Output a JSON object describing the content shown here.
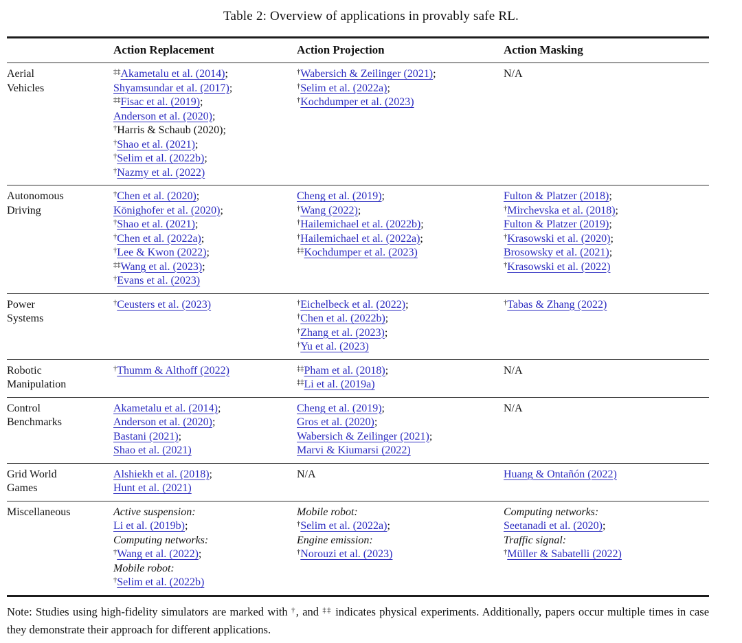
{
  "title": "Table 2: Overview of applications in provably safe RL.",
  "columns": [
    "Action Replacement",
    "Action Projection",
    "Action Masking"
  ],
  "colors": {
    "link_color": "#2b2bc0",
    "text_color": "#121212",
    "rule_heavy": "#1c1c1c",
    "rule_light": "#2e2e2e"
  },
  "rows": [
    {
      "label": "Aerial\nVehicles",
      "cells": [
        [
          {
            "marker": "‡‡",
            "text": "Akametalu et al. (2014)",
            "link": true,
            "end": ";"
          },
          {
            "text": "Shyamsundar et al. (2017)",
            "link": true,
            "end": ";"
          },
          {
            "marker": "‡‡",
            "text": "Fisac et al. (2019)",
            "link": true,
            "end": ";"
          },
          {
            "text": "Anderson et al. (2020)",
            "link": true,
            "end": ";"
          },
          {
            "marker": "†",
            "text": "Harris & Schaub (2020)",
            "link": false,
            "end": ";"
          },
          {
            "marker": "†",
            "text": "Shao et al. (2021)",
            "link": true,
            "end": ";"
          },
          {
            "marker": "†",
            "text": "Selim et al. (2022b)",
            "link": true,
            "end": ";"
          },
          {
            "marker": "†",
            "text": "Nazmy et al. (2022)",
            "link": true,
            "end": ""
          }
        ],
        [
          {
            "marker": "†",
            "text": "Wabersich & Zeilinger (2021)",
            "link": true,
            "end": ";"
          },
          {
            "marker": "†",
            "text": "Selim et al. (2022a)",
            "link": true,
            "end": ";"
          },
          {
            "marker": "†",
            "text": "Kochdumper et al. (2023)",
            "link": true,
            "end": ""
          }
        ],
        [
          {
            "text": "N/A",
            "link": false,
            "na": true,
            "end": ""
          }
        ]
      ]
    },
    {
      "label": "Autonomous\nDriving",
      "cells": [
        [
          {
            "marker": "†",
            "text": "Chen et al. (2020)",
            "link": true,
            "end": ";"
          },
          {
            "text": "Könighofer et al. (2020)",
            "link": true,
            "end": ";"
          },
          {
            "marker": "†",
            "text": "Shao et al. (2021)",
            "link": true,
            "end": ";"
          },
          {
            "marker": "†",
            "text": "Chen et al. (2022a)",
            "link": true,
            "end": ";"
          },
          {
            "marker": "†",
            "text": "Lee & Kwon (2022)",
            "link": true,
            "end": ";"
          },
          {
            "marker": "‡‡",
            "text": "Wang et al. (2023)",
            "link": true,
            "end": ";"
          },
          {
            "marker": "†",
            "text": "Evans et al. (2023)",
            "link": true,
            "end": ""
          }
        ],
        [
          {
            "text": "Cheng et al. (2019)",
            "link": true,
            "end": ";"
          },
          {
            "marker": "†",
            "text": "Wang (2022)",
            "link": true,
            "end": ";"
          },
          {
            "marker": "†",
            "text": "Hailemichael et al. (2022b)",
            "link": true,
            "end": ";"
          },
          {
            "marker": "†",
            "text": "Hailemichael et al. (2022a)",
            "link": true,
            "end": ";"
          },
          {
            "marker": "‡‡",
            "text": "Kochdumper et al. (2023)",
            "link": true,
            "end": ""
          }
        ],
        [
          {
            "text": "Fulton & Platzer (2018)",
            "link": true,
            "end": ";"
          },
          {
            "marker": "†",
            "text": "Mirchevska et al. (2018)",
            "link": true,
            "end": ";"
          },
          {
            "text": "Fulton & Platzer (2019)",
            "link": true,
            "end": ";"
          },
          {
            "marker": "†",
            "text": "Krasowski et al. (2020)",
            "link": true,
            "end": ";"
          },
          {
            "text": "Brosowsky et al. (2021)",
            "link": true,
            "end": ";"
          },
          {
            "marker": "†",
            "text": "Krasowski et al. (2022)",
            "link": true,
            "end": ""
          }
        ]
      ]
    },
    {
      "label": "Power\nSystems",
      "cells": [
        [
          {
            "marker": "†",
            "text": "Ceusters et al. (2023)",
            "link": true,
            "end": ""
          }
        ],
        [
          {
            "marker": "†",
            "text": "Eichelbeck et al. (2022)",
            "link": true,
            "end": ";"
          },
          {
            "marker": "†",
            "text": "Chen et al. (2022b)",
            "link": true,
            "end": ";"
          },
          {
            "marker": "†",
            "text": "Zhang et al. (2023)",
            "link": true,
            "end": ";"
          },
          {
            "marker": "†",
            "text": "Yu et al. (2023)",
            "link": true,
            "end": ""
          }
        ],
        [
          {
            "marker": "†",
            "text": "Tabas & Zhang (2022)",
            "link": true,
            "end": ""
          }
        ]
      ]
    },
    {
      "label": "Robotic\nManipulation",
      "cells": [
        [
          {
            "marker": "†",
            "text": "Thumm & Althoff (2022)",
            "link": true,
            "end": ""
          }
        ],
        [
          {
            "marker": "‡‡",
            "text": "Pham et al. (2018)",
            "link": true,
            "end": ";"
          },
          {
            "marker": "‡‡",
            "text": "Li et al. (2019a)",
            "link": true,
            "end": ""
          }
        ],
        [
          {
            "text": "N/A",
            "link": false,
            "na": true,
            "end": ""
          }
        ]
      ]
    },
    {
      "label": "Control\nBenchmarks",
      "cells": [
        [
          {
            "text": "Akametalu et al. (2014)",
            "link": true,
            "end": ";"
          },
          {
            "text": "Anderson et al. (2020)",
            "link": true,
            "end": ";"
          },
          {
            "text": "Bastani (2021)",
            "link": true,
            "end": ";"
          },
          {
            "text": "Shao et al. (2021)",
            "link": true,
            "end": ""
          }
        ],
        [
          {
            "text": "Cheng et al. (2019)",
            "link": true,
            "end": ";"
          },
          {
            "text": "Gros et al. (2020)",
            "link": true,
            "end": ";"
          },
          {
            "text": "Wabersich & Zeilinger (2021)",
            "link": true,
            "end": ";"
          },
          {
            "text": "Marvi & Kiumarsi (2022)",
            "link": true,
            "end": ""
          }
        ],
        [
          {
            "text": "N/A",
            "link": false,
            "na": true,
            "end": ""
          }
        ]
      ]
    },
    {
      "label": "Grid World\nGames",
      "cells": [
        [
          {
            "text": "Alshiekh et al. (2018)",
            "link": true,
            "end": ";"
          },
          {
            "text": "Hunt et al. (2021)",
            "link": true,
            "end": ""
          }
        ],
        [
          {
            "text": "N/A",
            "link": false,
            "na": true,
            "end": ""
          }
        ],
        [
          {
            "text": "Huang & Ontañón (2022)",
            "link": true,
            "end": ""
          }
        ]
      ]
    },
    {
      "label": "Miscellaneous",
      "cells": [
        [
          {
            "text": "Active suspension:",
            "link": false,
            "italic": true,
            "end": ""
          },
          {
            "text": "Li et al. (2019b)",
            "link": true,
            "end": ";"
          },
          {
            "text": "Computing networks:",
            "link": false,
            "italic": true,
            "end": ""
          },
          {
            "marker": "†",
            "text": "Wang et al. (2022)",
            "link": true,
            "end": ";"
          },
          {
            "text": "Mobile robot:",
            "link": false,
            "italic": true,
            "end": ""
          },
          {
            "marker": "†",
            "text": "Selim et al. (2022b)",
            "link": true,
            "end": ""
          }
        ],
        [
          {
            "text": "Mobile robot:",
            "link": false,
            "italic": true,
            "end": ""
          },
          {
            "marker": "†",
            "text": "Selim et al. (2022a)",
            "link": true,
            "end": ";"
          },
          {
            "text": "Engine emission:",
            "link": false,
            "italic": true,
            "end": ""
          },
          {
            "marker": "†",
            "text": "Norouzi et al. (2023)",
            "link": true,
            "end": ""
          }
        ],
        [
          {
            "text": "Computing networks:",
            "link": false,
            "italic": true,
            "end": ""
          },
          {
            "text": "Seetanadi et al. (2020)",
            "link": true,
            "end": ";"
          },
          {
            "text": "Traffic signal:",
            "link": false,
            "italic": true,
            "end": ""
          },
          {
            "marker": "†",
            "text": "Müller & Sabatelli (2022)",
            "link": true,
            "end": ""
          }
        ]
      ]
    }
  ],
  "note": "Note: Studies using high-fidelity simulators are marked with †, and ‡‡ indicates physical experiments. Additionally, papers occur multiple times in case they demonstrate their approach for different applications."
}
